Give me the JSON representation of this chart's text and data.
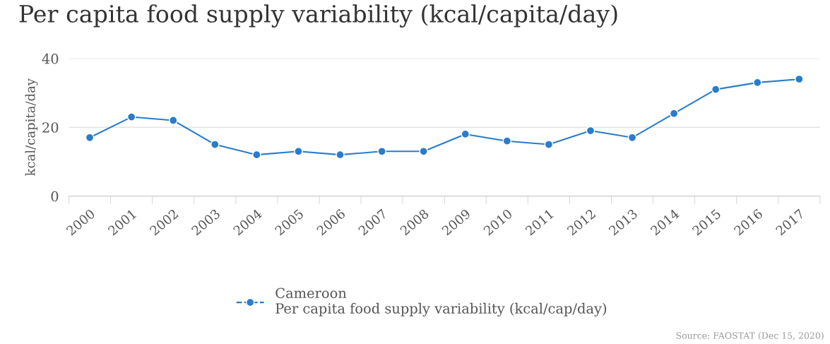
{
  "chart_data": {
    "type": "line",
    "title": "Per capita food supply variability (kcal/capita/day)",
    "ylabel": "kcal/capita/day",
    "categories": [
      "2000",
      "2001",
      "2002",
      "2003",
      "2004",
      "2005",
      "2006",
      "2007",
      "2008",
      "2009",
      "2010",
      "2011",
      "2012",
      "2013",
      "2014",
      "2015",
      "2016",
      "2017"
    ],
    "series": [
      {
        "name": "Cameroon\nPer capita food supply variability (kcal/cap/day)",
        "color": "#2a7ccc",
        "values": [
          17,
          23,
          22,
          15,
          12,
          13,
          12,
          13,
          13,
          18,
          16,
          15,
          19,
          17,
          24,
          31,
          33,
          34
        ]
      }
    ],
    "ylim": [
      0,
      40
    ],
    "yticks": [
      0,
      20,
      40
    ],
    "grid": "y",
    "legend": "bottom",
    "marker": "circle",
    "line_style": "solid",
    "annotations": [
      "Source: FAOSTAT (Dec 15, 2020)"
    ]
  }
}
